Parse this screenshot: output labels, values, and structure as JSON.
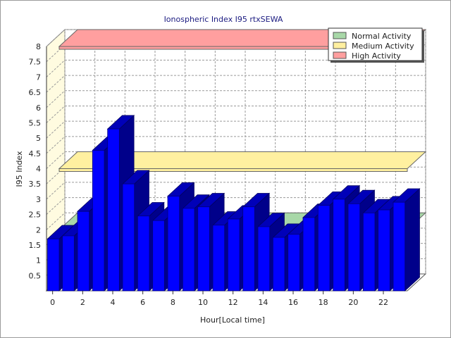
{
  "chart_data": {
    "type": "bar",
    "title": "Ionospheric Index I95 rtxSEWA",
    "xlabel": "Hour[Local time]",
    "ylabel": "I95 Index",
    "x": [
      0,
      1,
      2,
      3,
      4,
      5,
      6,
      7,
      8,
      9,
      10,
      11,
      12,
      13,
      14,
      15,
      16,
      17,
      18,
      19,
      20,
      21,
      22,
      23
    ],
    "values": [
      1.7,
      1.8,
      2.6,
      4.6,
      5.3,
      3.5,
      2.45,
      2.3,
      3.1,
      2.7,
      2.75,
      2.15,
      2.35,
      2.75,
      2.1,
      1.75,
      1.85,
      2.4,
      2.8,
      3.0,
      2.85,
      2.55,
      2.65,
      2.9
    ],
    "xticks": [
      "0",
      "2",
      "4",
      "6",
      "8",
      "10",
      "12",
      "14",
      "16",
      "18",
      "20",
      "22"
    ],
    "yticks": [
      "0.5",
      "1",
      "1.5",
      "2",
      "2.5",
      "3",
      "3.5",
      "4",
      "4.5",
      "5",
      "5.5",
      "6",
      "6.5",
      "7",
      "7.5",
      "8"
    ],
    "ylim": [
      0,
      8
    ],
    "grid": true,
    "bar_color": "#0000ff",
    "bands": [
      {
        "name": "Normal Activity",
        "value": 2,
        "color": "#a8d8a8"
      },
      {
        "name": "Medium Activity",
        "value": 4,
        "color": "#fff0a0"
      },
      {
        "name": "High Activity",
        "value": 8,
        "color": "#ff9f9f"
      }
    ],
    "legend_position": "top-right",
    "style": "3d"
  }
}
